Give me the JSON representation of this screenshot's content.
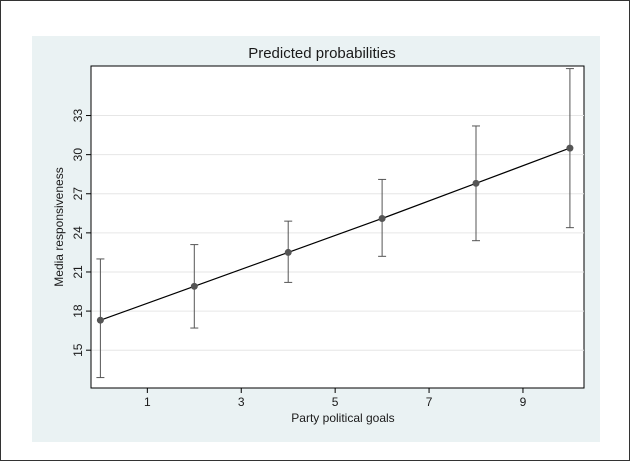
{
  "chart_data": {
    "type": "line",
    "title": "Predicted probabilities",
    "xlabel": "Party political goals",
    "ylabel": "Media responsiveness",
    "xlim": [
      -0.2,
      10.3
    ],
    "ylim": [
      12.1,
      36.8
    ],
    "x_ticks": [
      1,
      3,
      5,
      7,
      9
    ],
    "y_ticks": [
      15,
      18,
      21,
      24,
      27,
      30,
      33
    ],
    "grid": "horizontal",
    "series": [
      {
        "x": [
          0,
          2,
          4,
          6,
          8,
          10
        ],
        "y": [
          17.3,
          19.9,
          22.5,
          25.1,
          27.8,
          30.5
        ],
        "ci_lower": [
          12.9,
          16.7,
          20.2,
          22.2,
          23.4,
          24.4
        ],
        "ci_upper": [
          22.0,
          23.1,
          24.9,
          28.1,
          32.2,
          36.6
        ]
      }
    ],
    "colors": {
      "background": "#eaf2f3",
      "plot_area": "#ffffff",
      "line": "#000000",
      "marker": "#555555",
      "error_bar": "#555555",
      "grid": "#e6e6e6"
    }
  }
}
